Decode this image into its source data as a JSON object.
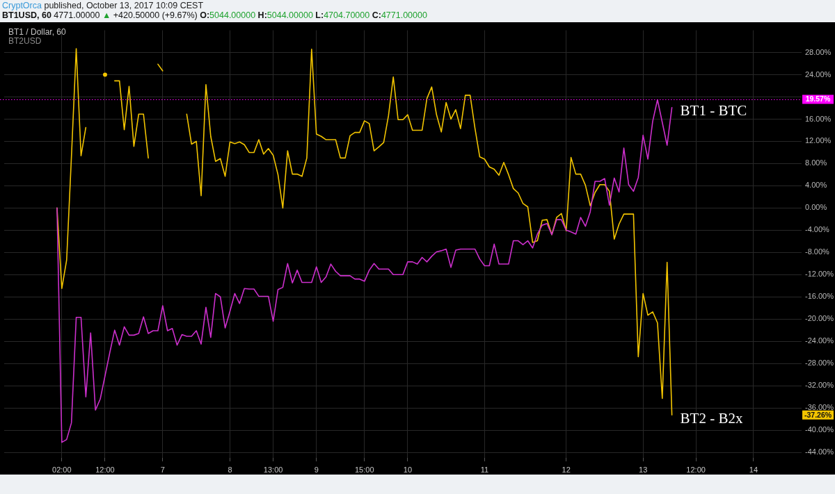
{
  "chart_data": {
    "type": "line",
    "title": "BT1USD, 60 4771.00000 ▲ +420.50000 (+9.67%) O:5044.00000 H:5044.00000 L:4704.70000 C:4771.00000",
    "annotations": [
      "CryptOrca published, October 13, 2017 10:09 CEST",
      "BT1 / Dollar, 60",
      "BT2USD",
      "-37.26%"
    ],
    "categories": [
      null,
      null,
      null,
      null,
      null,
      null,
      null,
      null,
      null,
      null,
      null,
      null,
      "02:00",
      null,
      null,
      null,
      null,
      null,
      null,
      null,
      null,
      "12:00",
      null,
      null,
      null,
      null,
      null,
      null,
      null,
      null,
      null,
      null,
      null,
      "7",
      null,
      null,
      null,
      null,
      null,
      null,
      null,
      null,
      null,
      null,
      null,
      null,
      null,
      "8",
      null,
      null,
      null,
      null,
      null,
      null,
      null,
      null,
      "13:00",
      null,
      null,
      null,
      null,
      null,
      null,
      null,
      null,
      "9",
      null,
      null,
      null,
      null,
      null,
      null,
      null,
      null,
      null,
      "15:00",
      null,
      null,
      null,
      null,
      null,
      null,
      null,
      null,
      "10",
      null,
      null,
      null,
      null,
      null,
      null,
      null,
      null,
      null,
      null,
      null,
      null,
      null,
      null,
      null,
      "11",
      null,
      null,
      null,
      null,
      null,
      null,
      null,
      null,
      null,
      null,
      null,
      null,
      null,
      null,
      null,
      null,
      "12",
      null,
      null,
      null,
      null,
      null,
      null,
      null,
      null,
      null,
      null,
      null,
      null,
      null,
      null,
      null,
      "13",
      null,
      null,
      null,
      null,
      null,
      null,
      null,
      null,
      null,
      null,
      "12:00",
      null,
      null,
      null,
      null,
      null,
      null,
      null,
      null,
      null,
      null,
      null,
      "14",
      null,
      null,
      null,
      null,
      null,
      null,
      null,
      null,
      null,
      null
    ],
    "series": [
      {
        "name": "BT1 - BTC",
        "color": "#cc2fcc",
        "values": [
          null,
          null,
          null,
          null,
          null,
          null,
          null,
          null,
          null,
          null,
          null,
          0.0,
          -42.2,
          -41.7,
          -38.7,
          -19.7,
          -19.7,
          -34.0,
          -22.5,
          -36.4,
          -34.4,
          -30.2,
          -26.0,
          -22.0,
          -24.7,
          -21.4,
          -22.9,
          -22.9,
          -22.6,
          -19.6,
          -22.6,
          -22.1,
          -22.1,
          -17.6,
          -22.1,
          -21.7,
          -24.7,
          -22.8,
          -23.1,
          -23.1,
          -22.1,
          -24.5,
          -17.9,
          -23.3,
          -15.4,
          -16.0,
          -21.6,
          -18.6,
          -15.4,
          -17.2,
          -14.5,
          -14.6,
          -14.6,
          -15.9,
          -15.9,
          -15.9,
          -20.4,
          -14.7,
          -14.3,
          -10.0,
          -13.5,
          -11.2,
          -13.4,
          -13.4,
          -13.4,
          -10.6,
          -13.4,
          -12.4,
          -10.1,
          -11.4,
          -12.2,
          -12.2,
          -12.2,
          -12.8,
          -12.8,
          -13.2,
          -11.2,
          -10.0,
          -11.0,
          -11.0,
          -11.0,
          -12.0,
          -12.0,
          -12.0,
          -9.7,
          -9.7,
          -10.1,
          -8.9,
          -9.7,
          -8.7,
          -7.9,
          -7.7,
          -7.4,
          -10.7,
          -7.6,
          -7.4,
          -7.4,
          -7.4,
          -7.4,
          -9.2,
          -10.4,
          -10.4,
          -6.5,
          -10.1,
          -10.1,
          -10.1,
          -5.9,
          -5.9,
          -6.6,
          -5.9,
          -7.2,
          -4.7,
          -3.1,
          -2.8,
          -4.8,
          -2.1,
          -2.1,
          -4.0,
          -4.3,
          -4.7,
          -1.7,
          -3.3,
          -0.7,
          4.8,
          4.8,
          5.3,
          0.5,
          5.4,
          2.9,
          10.8,
          4.2,
          3.0,
          5.5,
          13.1,
          8.8,
          15.6,
          19.5,
          15.4,
          11.3,
          18.1,
          null,
          null,
          null,
          null,
          null,
          null,
          null,
          null,
          null,
          null,
          null,
          null,
          null,
          null,
          null,
          null,
          null,
          null,
          null,
          null,
          null,
          null,
          null,
          null,
          null,
          null,
          null
        ]
      },
      {
        "name": "BT2 - B2x",
        "color": "#f2c400",
        "values": [
          null,
          null,
          null,
          null,
          null,
          null,
          null,
          null,
          null,
          null,
          null,
          0.0,
          -14.5,
          -9.4,
          9.2,
          28.7,
          9.4,
          14.5,
          null,
          null,
          null,
          24.0,
          null,
          22.9,
          22.9,
          14.1,
          21.9,
          11.1,
          16.9,
          16.9,
          9.0,
          null,
          25.9,
          24.7,
          null,
          null,
          null,
          null,
          16.9,
          11.5,
          12.0,
          2.2,
          22.2,
          12.9,
          8.4,
          8.9,
          5.7,
          11.9,
          11.6,
          11.9,
          11.4,
          10.0,
          10.0,
          12.3,
          9.7,
          10.7,
          9.5,
          6.0,
          0.0,
          10.3,
          6.1,
          6.1,
          5.7,
          9.0,
          28.6,
          13.3,
          12.9,
          12.3,
          12.3,
          12.3,
          9.0,
          9.0,
          13.0,
          13.6,
          13.6,
          15.7,
          15.2,
          10.3,
          11.0,
          11.8,
          16.6,
          23.6,
          15.9,
          15.9,
          16.8,
          14.0,
          14.0,
          14.0,
          19.7,
          21.8,
          16.8,
          13.7,
          19.0,
          16.0,
          17.7,
          14.3,
          20.3,
          20.3,
          14.4,
          9.2,
          8.8,
          7.4,
          7.0,
          5.9,
          8.2,
          6.0,
          3.5,
          2.7,
          0.8,
          0.2,
          -6.2,
          -5.9,
          -2.2,
          -2.1,
          -4.8,
          -1.7,
          -1.0,
          -4.1,
          9.1,
          6.1,
          6.1,
          4.1,
          0.4,
          2.8,
          4.2,
          4.2,
          3.0,
          -5.6,
          -2.9,
          -1.1,
          -1.1,
          -1.1,
          -26.8,
          -15.4,
          -19.3,
          -18.7,
          -20.7,
          -34.3,
          -9.8,
          -37.26,
          null,
          null,
          null,
          null,
          null,
          null,
          null,
          null,
          null,
          null,
          null,
          null,
          null,
          null,
          null,
          null,
          null,
          null,
          null,
          null,
          null,
          null,
          null,
          null,
          null,
          null,
          null
        ]
      }
    ],
    "ylim": [
      -45,
      32
    ],
    "yticks": [
      {
        "value": -44,
        "label": "-44.00%"
      },
      {
        "value": -40,
        "label": "-40.00%"
      },
      {
        "value": -36,
        "label": "-36.00%"
      },
      {
        "value": -32,
        "label": "-32.00%"
      },
      {
        "value": -28,
        "label": "-28.00%"
      },
      {
        "value": -24,
        "label": "-24.00%"
      },
      {
        "value": -20,
        "label": "-20.00%"
      },
      {
        "value": -16,
        "label": "-16.00%"
      },
      {
        "value": -12,
        "label": "-12.00%"
      },
      {
        "value": -8,
        "label": "-8.00%"
      },
      {
        "value": -4,
        "label": "-4.00%"
      },
      {
        "value": 0,
        "label": "0.00%"
      },
      {
        "value": 4,
        "label": "4.00%"
      },
      {
        "value": 8,
        "label": "8.00%"
      },
      {
        "value": 12,
        "label": "12.00%"
      },
      {
        "value": 16,
        "label": "16.00%"
      },
      {
        "value": 20,
        "label": null
      },
      {
        "value": 24,
        "label": "24.00%"
      },
      {
        "value": 28,
        "label": "28.00%"
      }
    ],
    "grid": true,
    "ref_lines": [
      {
        "axis": "y",
        "value": 19.57,
        "label": "19.57%",
        "color": "#ff00ff",
        "line_style": "dotted"
      }
    ]
  }
}
